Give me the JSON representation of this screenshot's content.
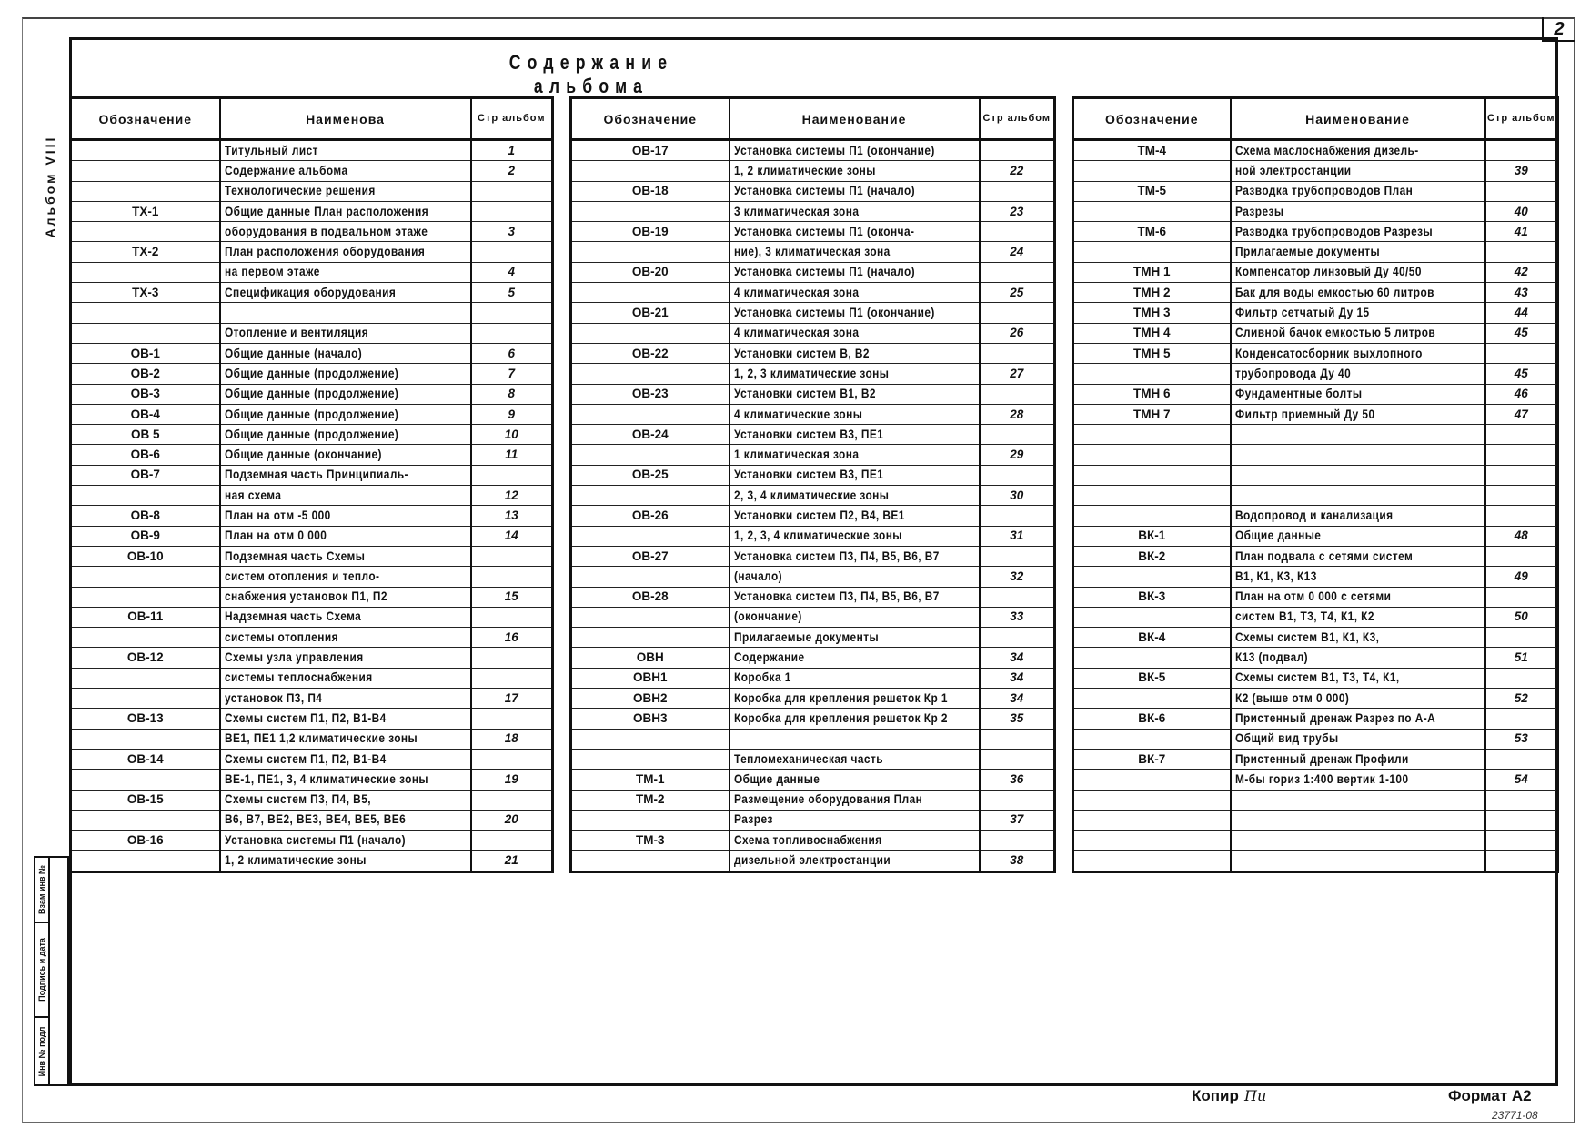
{
  "sheet": {
    "page_number": "2",
    "title": "Содержание альбома",
    "side_label": "Альбом VIII",
    "stamps": [
      "Взам инв №",
      "Подпись и дата",
      "Инв № подл"
    ],
    "copy_label": "Копир",
    "copy_signature": "Пи",
    "format_label": "Формат А2",
    "doc_number": "23771-08"
  },
  "tables": [
    {
      "headers": {
        "code": "Обозначение",
        "name": "Наименова",
        "page": "Стр альбом"
      },
      "rows": [
        [
          "",
          "Титульный лист",
          "1"
        ],
        [
          "",
          "Содержание альбома",
          "2"
        ],
        [
          "",
          "Технологические решения",
          ""
        ],
        [
          "ТХ-1",
          "Общие данные План расположения",
          ""
        ],
        [
          "",
          "оборудования в подвальном этаже",
          "3"
        ],
        [
          "ТХ-2",
          "План расположения оборудования",
          ""
        ],
        [
          "",
          "на первом этаже",
          "4"
        ],
        [
          "ТХ-3",
          "Спецификация оборудования",
          "5"
        ],
        [
          "",
          "",
          ""
        ],
        [
          "",
          "Отопление и вентиляция",
          ""
        ],
        [
          "ОВ-1",
          "Общие данные (начало)",
          "6"
        ],
        [
          "ОВ-2",
          "Общие данные (продолжение)",
          "7"
        ],
        [
          "ОВ-3",
          "Общие данные (продолжение)",
          "8"
        ],
        [
          "ОВ-4",
          "Общие данные (продолжение)",
          "9"
        ],
        [
          "ОВ 5",
          "Общие данные (продолжение)",
          "10"
        ],
        [
          "ОВ-6",
          "Общие данные (окончание)",
          "11"
        ],
        [
          "ОВ-7",
          "Подземная часть Принципиаль-",
          ""
        ],
        [
          "",
          "ная схема",
          "12"
        ],
        [
          "ОВ-8",
          "План на отм -5 000",
          "13"
        ],
        [
          "ОВ-9",
          "План на отм 0 000",
          "14"
        ],
        [
          "ОВ-10",
          "Подземная часть Схемы",
          ""
        ],
        [
          "",
          "систем отопления и тепло-",
          ""
        ],
        [
          "",
          "снабжения установок П1, П2",
          "15"
        ],
        [
          "ОВ-11",
          "Надземная часть Схема",
          ""
        ],
        [
          "",
          "системы отопления",
          "16"
        ],
        [
          "ОВ-12",
          "Схемы узла управления",
          ""
        ],
        [
          "",
          "системы теплоснабжения",
          ""
        ],
        [
          "",
          "установок П3, П4",
          "17"
        ],
        [
          "ОВ-13",
          "Схемы систем П1, П2, В1-В4",
          ""
        ],
        [
          "",
          "ВЕ1, ПЕ1 1,2 климатические зоны",
          "18"
        ],
        [
          "ОВ-14",
          "Схемы систем П1, П2, В1-В4",
          ""
        ],
        [
          "",
          "ВЕ-1, ПЕ1, 3, 4 климатические зоны",
          "19"
        ],
        [
          "ОВ-15",
          "Схемы систем П3, П4, В5,",
          ""
        ],
        [
          "",
          "В6, В7, ВЕ2, ВЕ3, ВЕ4, ВЕ5, ВЕ6",
          "20"
        ],
        [
          "ОВ-16",
          "Установка системы П1 (начало)",
          ""
        ],
        [
          "",
          "1, 2 климатические зоны",
          "21"
        ]
      ]
    },
    {
      "headers": {
        "code": "Обозначение",
        "name": "Наименование",
        "page": "Стр альбом"
      },
      "rows": [
        [
          "ОВ-17",
          "Установка системы П1 (окончание)",
          ""
        ],
        [
          "",
          "1, 2 климатические зоны",
          "22"
        ],
        [
          "ОВ-18",
          "Установка системы П1 (начало)",
          ""
        ],
        [
          "",
          "3 климатическая зона",
          "23"
        ],
        [
          "ОВ-19",
          "Установка системы П1 (оконча-",
          ""
        ],
        [
          "",
          "ние), 3 климатическая зона",
          "24"
        ],
        [
          "ОВ-20",
          "Установка системы П1 (начало)",
          ""
        ],
        [
          "",
          "4 климатическая зона",
          "25"
        ],
        [
          "ОВ-21",
          "Установка системы П1 (окончание)",
          ""
        ],
        [
          "",
          "4 климатическая зона",
          "26"
        ],
        [
          "ОВ-22",
          "Установки систем В, В2",
          ""
        ],
        [
          "",
          "1, 2, 3 климатические зоны",
          "27"
        ],
        [
          "ОВ-23",
          "Установки систем В1, В2",
          ""
        ],
        [
          "",
          "4 климатические зоны",
          "28"
        ],
        [
          "ОВ-24",
          "Установки систем В3, ПЕ1",
          ""
        ],
        [
          "",
          "1 климатическая зона",
          "29"
        ],
        [
          "ОВ-25",
          "Установки систем В3, ПЕ1",
          ""
        ],
        [
          "",
          "2, 3, 4 климатические зоны",
          "30"
        ],
        [
          "ОВ-26",
          "Установки систем П2, В4, ВЕ1",
          ""
        ],
        [
          "",
          "1, 2, 3, 4 климатические зоны",
          "31"
        ],
        [
          "ОВ-27",
          "Установка систем П3, П4, В5, В6, В7",
          ""
        ],
        [
          "",
          "(начало)",
          "32"
        ],
        [
          "ОВ-28",
          "Установка систем П3, П4, В5, В6, В7",
          ""
        ],
        [
          "",
          "(окончание)",
          "33"
        ],
        [
          "",
          "Прилагаемые документы",
          ""
        ],
        [
          "ОВН",
          "Содержание",
          "34"
        ],
        [
          "ОВН1",
          "Коробка 1",
          "34"
        ],
        [
          "ОВН2",
          "Коробка для крепления решеток Кр 1",
          "34"
        ],
        [
          "ОВН3",
          "Коробка для крепления решеток Кр 2",
          "35"
        ],
        [
          "",
          "",
          ""
        ],
        [
          "",
          "Тепломеханическая часть",
          ""
        ],
        [
          "ТМ-1",
          "Общие данные",
          "36"
        ],
        [
          "ТМ-2",
          "Размещение оборудования План",
          ""
        ],
        [
          "",
          "Разрез",
          "37"
        ],
        [
          "ТМ-3",
          "Схема топливоснабжения",
          ""
        ],
        [
          "",
          "дизельной электростанции",
          "38"
        ]
      ]
    },
    {
      "headers": {
        "code": "Обозначение",
        "name": "Наименование",
        "page": "Стр альбом"
      },
      "rows": [
        [
          "ТМ-4",
          "Схема маслоснабжения дизель-",
          ""
        ],
        [
          "",
          "ной электростанции",
          "39"
        ],
        [
          "ТМ-5",
          "Разводка трубопроводов План",
          ""
        ],
        [
          "",
          "Разрезы",
          "40"
        ],
        [
          "ТМ-6",
          "Разводка трубопроводов Разрезы",
          "41"
        ],
        [
          "",
          "Прилагаемые документы",
          ""
        ],
        [
          "ТМН 1",
          "Компенсатор линзовый Ду 40/50",
          "42"
        ],
        [
          "ТМН 2",
          "Бак для воды емкостью 60 литров",
          "43"
        ],
        [
          "ТМН 3",
          "Фильтр сетчатый Ду 15",
          "44"
        ],
        [
          "ТМН 4",
          "Сливной бачок емкостью 5 литров",
          "45"
        ],
        [
          "ТМН 5",
          "Конденсатосборник выхлопного",
          ""
        ],
        [
          "",
          "трубопровода Ду 40",
          "45"
        ],
        [
          "ТМН 6",
          "Фундаментные болты",
          "46"
        ],
        [
          "ТМН 7",
          "Фильтр приемный Ду 50",
          "47"
        ],
        [
          "",
          "",
          ""
        ],
        [
          "",
          "",
          ""
        ],
        [
          "",
          "",
          ""
        ],
        [
          "",
          "",
          ""
        ],
        [
          "",
          "Водопровод и канализация",
          ""
        ],
        [
          "ВК-1",
          "Общие данные",
          "48"
        ],
        [
          "ВК-2",
          "План подвала с сетями систем",
          ""
        ],
        [
          "",
          "В1, К1, К3, К13",
          "49"
        ],
        [
          "ВК-3",
          "План на отм 0 000 с сетями",
          ""
        ],
        [
          "",
          "систем В1, Т3, Т4, К1, К2",
          "50"
        ],
        [
          "ВК-4",
          "Схемы систем В1, К1, К3,",
          ""
        ],
        [
          "",
          "К13 (подвал)",
          "51"
        ],
        [
          "ВК-5",
          "Схемы систем В1, Т3, Т4, К1,",
          ""
        ],
        [
          "",
          "К2 (выше отм 0 000)",
          "52"
        ],
        [
          "ВК-6",
          "Пристенный дренаж Разрез по А-А",
          ""
        ],
        [
          "",
          "Общий вид трубы",
          "53"
        ],
        [
          "ВК-7",
          "Пристенный дренаж Профили",
          ""
        ],
        [
          "",
          "М-бы гориз 1:400 вертик 1-100",
          "54"
        ],
        [
          "",
          "",
          ""
        ],
        [
          "",
          "",
          ""
        ],
        [
          "",
          "",
          ""
        ],
        [
          "",
          "",
          ""
        ]
      ]
    }
  ]
}
